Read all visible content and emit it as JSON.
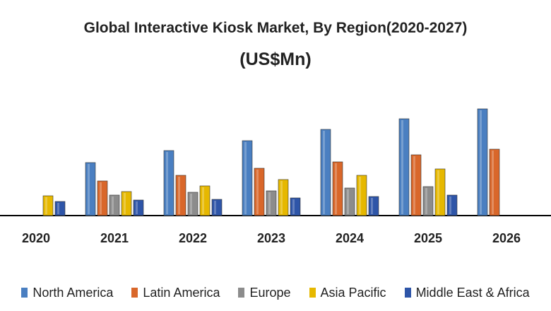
{
  "chart_data": {
    "type": "bar",
    "title": "Global Interactive Kiosk Market, By Region(2020-2027)",
    "subtitle": "(US$Mn)",
    "categories": [
      "2020",
      "2021",
      "2022",
      "2023",
      "2024",
      "2025",
      "2026"
    ],
    "series": [
      {
        "name": "North America",
        "color": "#4a7fc1",
        "values": [
          null,
          75,
          92,
          106,
          122,
          137,
          151
        ]
      },
      {
        "name": "Latin America",
        "color": "#d9672a",
        "values": [
          null,
          49,
          57,
          67,
          76,
          86,
          94
        ]
      },
      {
        "name": "Europe",
        "color": "#8c8c8c",
        "values": [
          null,
          29,
          33,
          35,
          39,
          41,
          null
        ]
      },
      {
        "name": "Asia Pacific",
        "color": "#e6b800",
        "values": [
          28,
          34,
          42,
          51,
          57,
          66,
          null
        ]
      },
      {
        "name": "Middle East & Africa",
        "color": "#2e55a8",
        "values": [
          20,
          22,
          23,
          25,
          27,
          29,
          null
        ]
      }
    ],
    "grid": false,
    "legend": "bottom",
    "note_values": "relative bar heights; no value axis printed"
  }
}
